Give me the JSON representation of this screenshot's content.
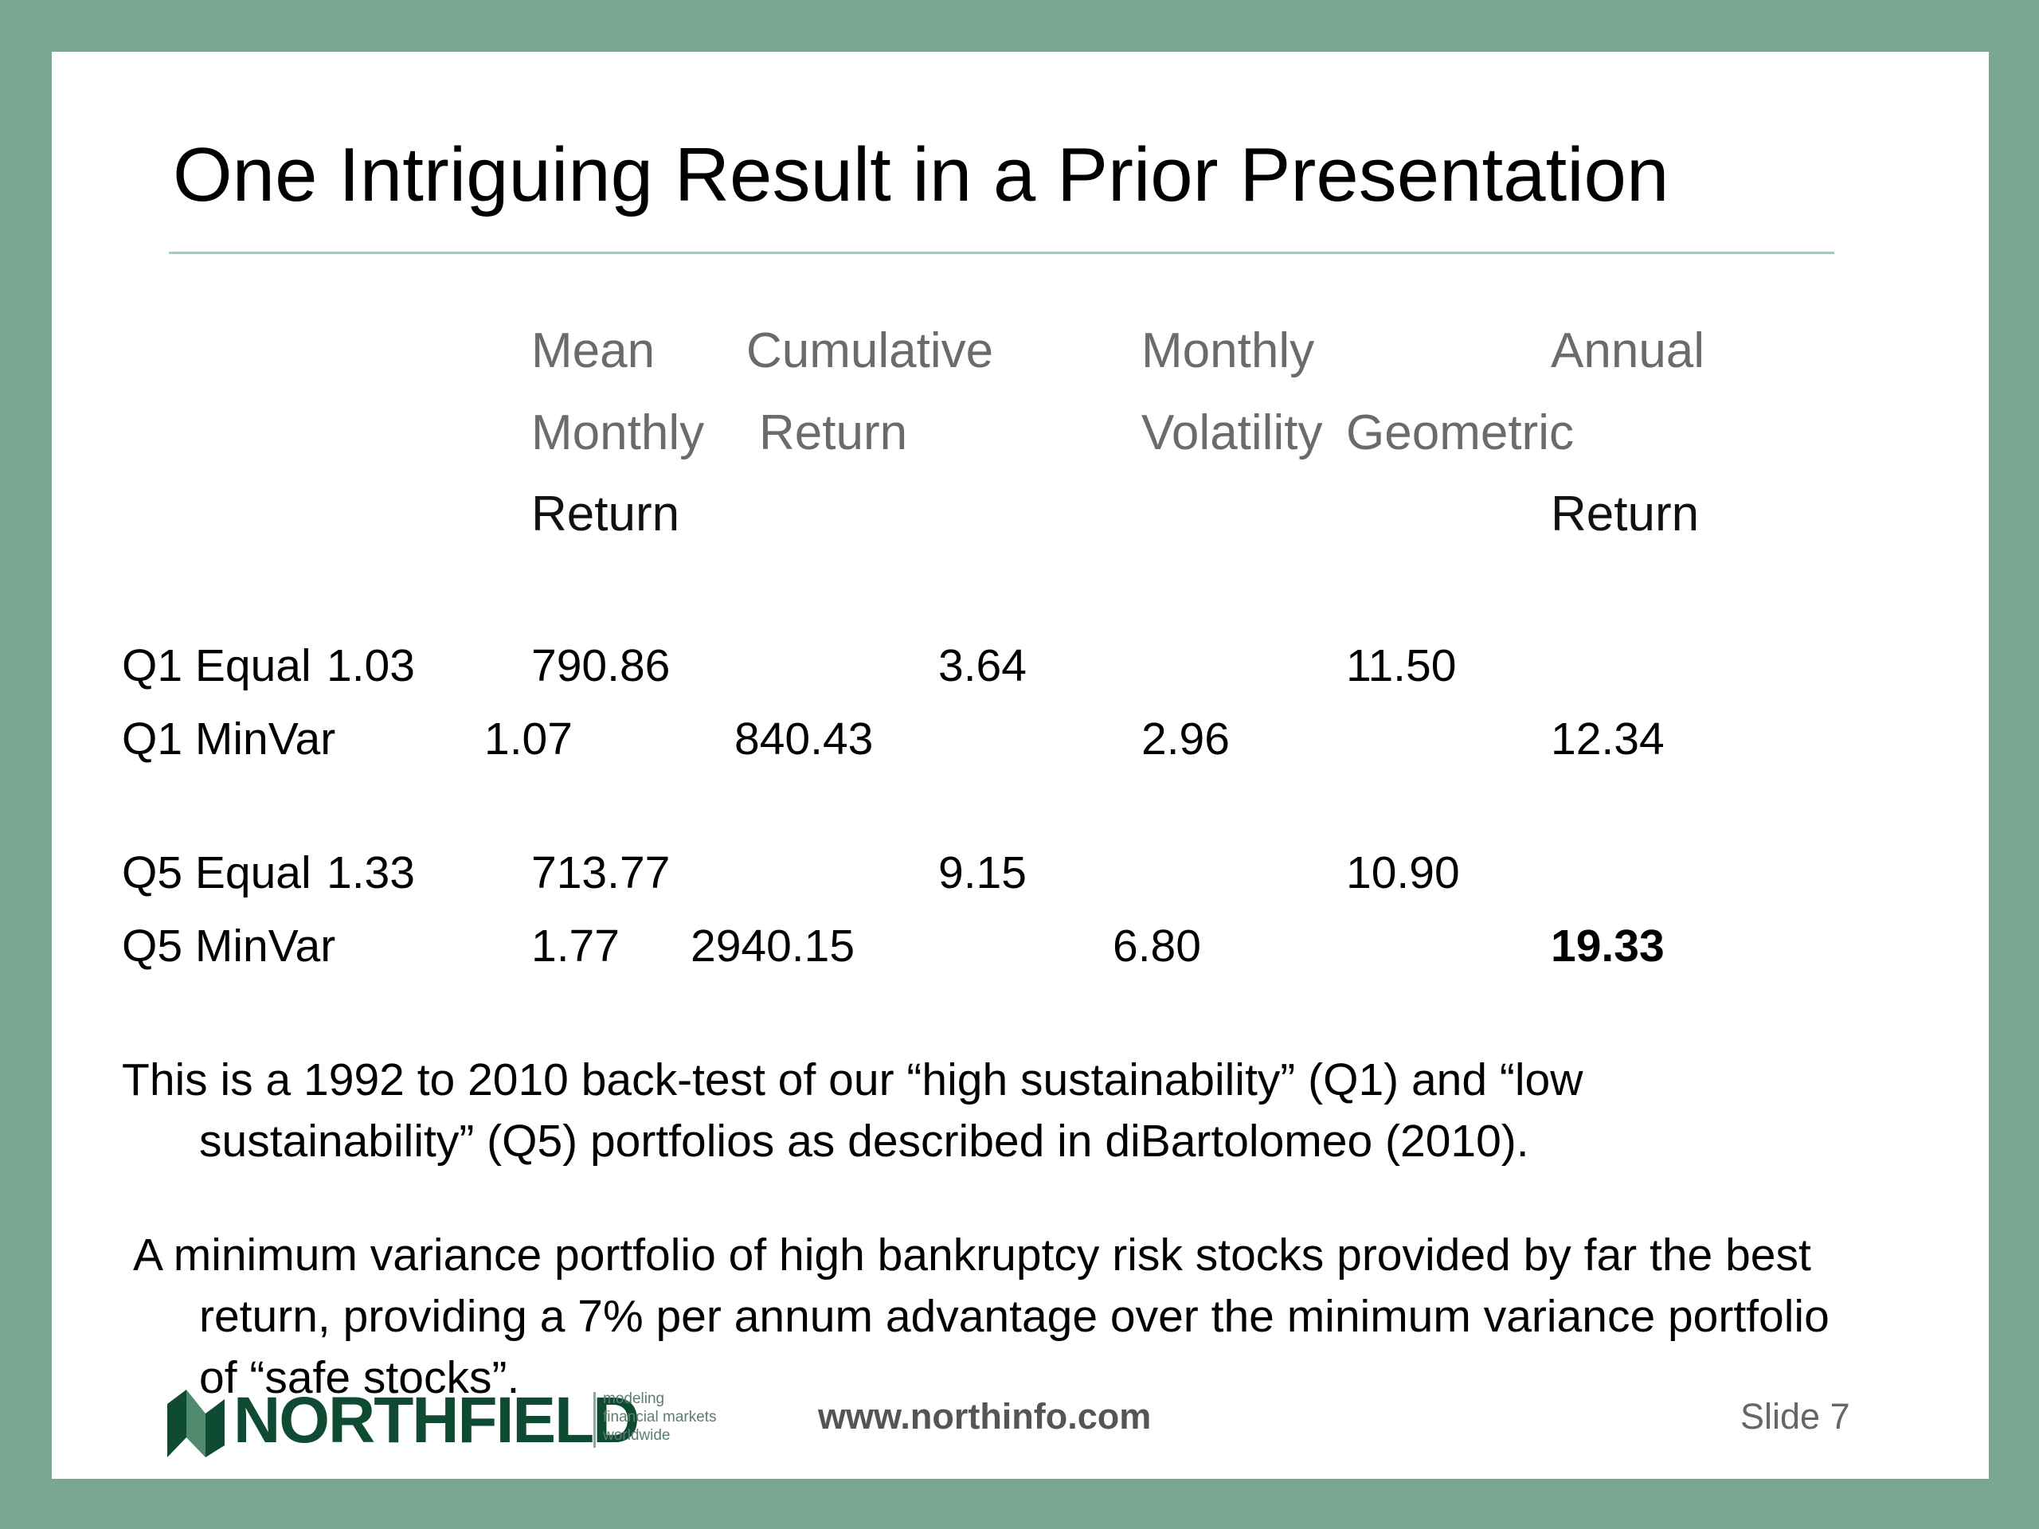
{
  "title": "One Intriguing Result in a Prior Presentation",
  "table": {
    "headers": {
      "mean_line1": "Mean",
      "mean_line2": "Monthly",
      "mean_line3": "Return",
      "cum_line1": "Cumulative",
      "cum_line2": "Return",
      "vol_line1": "Monthly",
      "vol_line2": "Volatility",
      "ann_line1": "Annual",
      "ann_line2": "Geometric",
      "ann_line3": "Return"
    },
    "rows": [
      {
        "label": "Q1 Equal",
        "mean": "1.03",
        "cumulative": "790.86",
        "volatility": "3.64",
        "annual": "11.50"
      },
      {
        "label": "Q1 MinVar",
        "mean": "1.07",
        "cumulative": "840.43",
        "volatility": "2.96",
        "annual": "12.34"
      },
      {
        "label": "Q5 Equal",
        "mean": "1.33",
        "cumulative": "713.77",
        "volatility": "9.15",
        "annual": "10.90"
      },
      {
        "label": "Q5 MinVar",
        "mean": "1.77",
        "cumulative": "2940.15",
        "volatility": "6.80",
        "annual": "19.33"
      }
    ]
  },
  "paragraphs": {
    "p1_line1": "This is a 1992 to 2010 back-test of our “high sustainability” (Q1) and “low",
    "p1_line2": "sustainability” (Q5) portfolios as described in diBartolomeo (2010).",
    "p2_line1": "A minimum variance portfolio of high bankruptcy risk stocks provided by far the best",
    "p2_line2": "return, providing a 7% per annum advantage over the minimum variance portfolio",
    "p2_line3": "of “safe stocks”."
  },
  "footer": {
    "brand": "NORTHFIELD",
    "tagline_1": "modeling",
    "tagline_2": "financial markets",
    "tagline_3": "worldwide",
    "url": "www.northinfo.com",
    "slide": "Slide 7"
  },
  "colors": {
    "frame": "#7aa794",
    "brand": "#0f4a33",
    "header_gray": "#6b6b6b"
  }
}
